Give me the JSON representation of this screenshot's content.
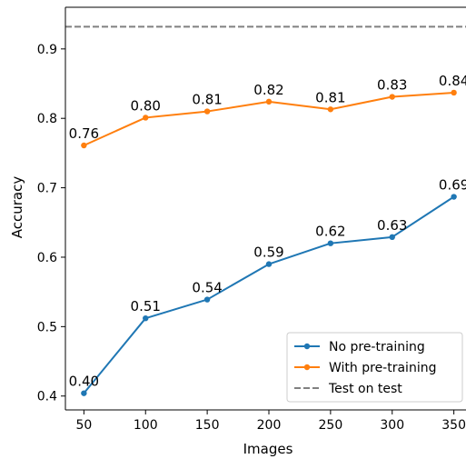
{
  "chart_data": {
    "type": "line",
    "title": "",
    "xlabel": "Images",
    "ylabel": "Accuracy",
    "x": [
      50,
      100,
      150,
      200,
      250,
      300,
      350
    ],
    "xticks": [
      "50",
      "100",
      "150",
      "200",
      "250",
      "300",
      "350"
    ],
    "yticks": [
      "0.4",
      "0.5",
      "0.6",
      "0.7",
      "0.8",
      "0.9"
    ],
    "xlim": [
      35,
      365
    ],
    "ylim": [
      0.38,
      0.96
    ],
    "grid": false,
    "legend_position": "bottom-right",
    "series": [
      {
        "name": "No pre-training",
        "color": "#1f77b4",
        "values": [
          0.404,
          0.512,
          0.539,
          0.59,
          0.62,
          0.629,
          0.687
        ],
        "labels": [
          "0.40",
          "0.51",
          "0.54",
          "0.59",
          "0.62",
          "0.63",
          "0.69"
        ]
      },
      {
        "name": "With pre-training",
        "color": "#ff7f0e",
        "values": [
          0.761,
          0.801,
          0.81,
          0.824,
          0.813,
          0.831,
          0.837
        ],
        "labels": [
          "0.76",
          "0.80",
          "0.81",
          "0.82",
          "0.81",
          "0.83",
          "0.84"
        ]
      }
    ],
    "reference_line": {
      "name": "Test on test",
      "value": 0.932,
      "color": "#808080",
      "style": "dashed"
    }
  }
}
